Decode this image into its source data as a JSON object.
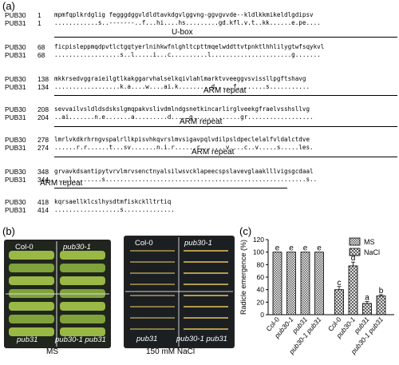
{
  "panels": {
    "a": "(a)",
    "b": "(b)",
    "c": "(c)"
  },
  "alignment": {
    "blocks": [
      {
        "names": [
          "PUB30",
          "PUB31"
        ],
        "starts": [
          "1",
          "1"
        ],
        "seq": [
          "mpmfqplkrdglig fegggdggvldldtavkdgvlggvng-ggvgvvde--kldlkkmikeldlgdipsv",
          "............s..-------..f...hi....hs.........gd.kfl.v.t..kk......e.pe...."
        ]
      },
      {
        "names": [
          "PUB30",
          "PUB31"
        ],
        "starts": [
          "68",
          "68"
        ],
        "seq": [
          "ficpisleppmqdpvtlctgqtyerlnihkwfnlghltcpttmqelwddttvtpnktlhhlilygtwfsqykvl",
          "..................s..l.....i...c..........l......................g......."
        ]
      },
      {
        "names": [
          "PUB30",
          "PUB31"
        ],
        "starts": [
          "138",
          "134"
        ],
        "seq": [
          "mkkrsedvggraieilgtlkakggarvhalselkqivlahlmarktvveeggvsvissllpgftshavg",
          "..................k.a....w....ai.k.........d.....f........s..........."
        ]
      },
      {
        "names": [
          "PUB30",
          "PUB31"
        ],
        "starts": [
          "208",
          "204"
        ],
        "seq": [
          "sevvailvsldldsdskslgmqpakvslivdmlndgsnetkincarlirglveekgfraelvsshsllvg",
          "..ai.......n.e.......a.........d.....g.............gr.................."
        ]
      },
      {
        "names": [
          "PUB30",
          "PUB31"
        ],
        "starts": [
          "278",
          "274"
        ],
        "seq": [
          "lmrlvkdkrhrngvspalrllkpisvhkqvrslmvsigavpqlvdilpsldpeclelalfvldalctdve",
          "......r.r......t...sv.......n.i.r......r.......v....c..v.....s.....les."
        ]
      },
      {
        "names": [
          "PUB30",
          "PUB31"
        ],
        "starts": [
          "348",
          "344"
        ],
        "seq": [
          "grvavkdsantipytvrvlmrvsenctnyalsilwsvcklapeecspslavevglaaklllvigsgcdaal",
          "....l........s.......................................................s.."
        ]
      },
      {
        "names": [
          "PUB30",
          "PUB31"
        ],
        "starts": [
          "418",
          "414"
        ],
        "seq": [
          "kqrsaellklcslhysdtmfiskcklltrtiq",
          "..................s.............."
        ]
      }
    ],
    "domains": [
      "U-box",
      "ARM repeat",
      "ARM repeat",
      "ARM repeat",
      "ARM repeat"
    ]
  },
  "plates": {
    "ms": {
      "tl": "Col-0",
      "tr": "pub30-1",
      "bl": "pub31",
      "br": "pub30-1 pub31",
      "caption": "MS"
    },
    "nacl": {
      "tl": "Col-0",
      "tr": "pub30-1",
      "bl": "pub31",
      "br": "pub30-1 pub31",
      "caption": "150 mM NaCl"
    }
  },
  "chart_data": {
    "type": "bar",
    "ylabel": "Radicle emergence (%)",
    "ylim": [
      0,
      120
    ],
    "yticks": [
      "0",
      "20",
      "40",
      "60",
      "80",
      "100",
      "120"
    ],
    "categories": [
      "Col-0",
      "pub30-1",
      "pub31",
      "pub30-1 pub31"
    ],
    "series": [
      {
        "name": "MS",
        "values": [
          100,
          100,
          100,
          100
        ],
        "errors": [
          0,
          0,
          0,
          0
        ],
        "letters": [
          "e",
          "e",
          "e",
          "e"
        ],
        "pattern": "#6d6d6d"
      },
      {
        "name": "NaCl",
        "values": [
          40,
          78,
          18,
          30
        ],
        "errors": [
          5,
          6,
          3,
          2
        ],
        "letters": [
          "c",
          "d",
          "a",
          "b"
        ],
        "pattern": "#9a9a9a"
      }
    ],
    "legend": "top-right"
  }
}
